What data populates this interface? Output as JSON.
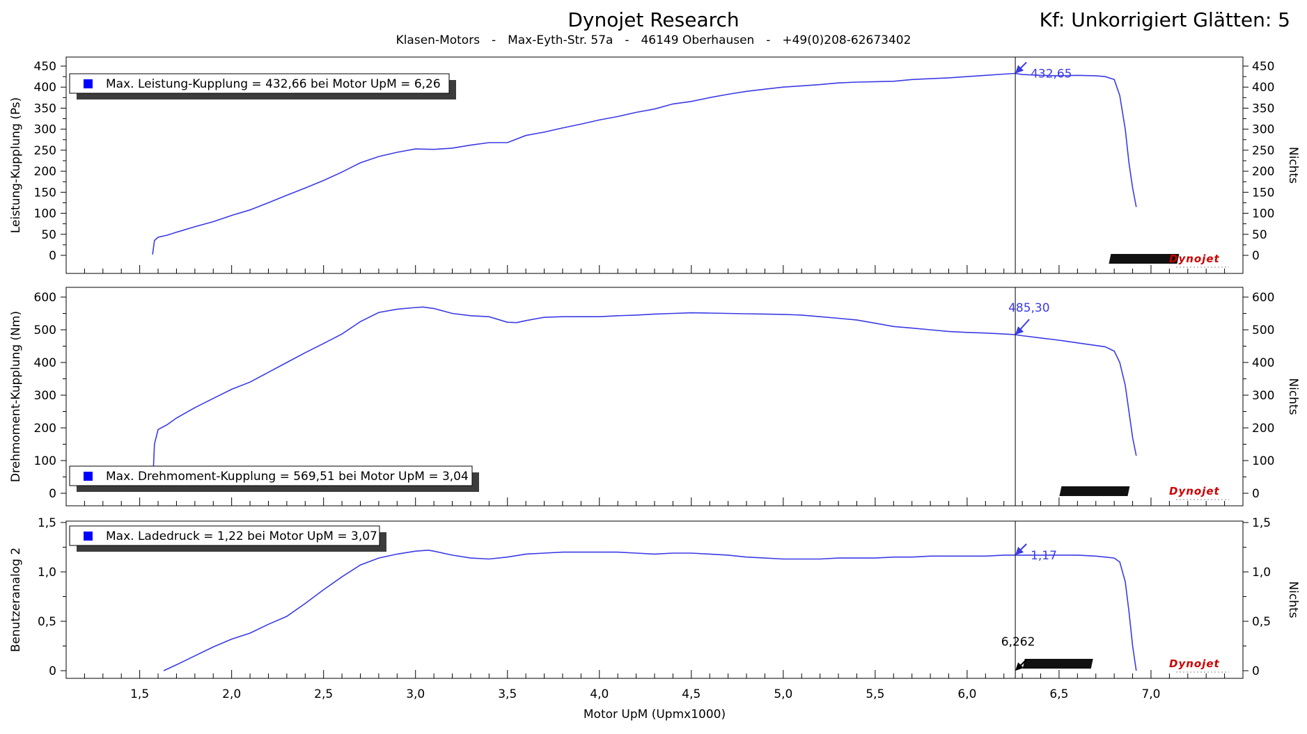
{
  "header": {
    "title": "Dynojet Research",
    "subtitle_parts": [
      "Klasen-Motors",
      "Max-Eyth-Str. 57a",
      "46149 Oberhausen",
      "+49(0)208-62673402"
    ],
    "separator": "-",
    "right_info": "Kf: Unkorrigiert Glätten: 5"
  },
  "colors": {
    "curve": "#3a3ae6",
    "cursor": "#000000",
    "legend_marker": "#0000ff",
    "logo_red": "#cc0000"
  },
  "cursor": {
    "x": 6.262,
    "label": "6,262"
  },
  "logo_text": "Dynojet",
  "chart_data": [
    {
      "type": "line",
      "ylabel": "Leistung-Kupplung (Ps)",
      "y2label": "Nichts",
      "ylim": [
        0,
        450
      ],
      "yticks": [
        0,
        50,
        100,
        150,
        200,
        250,
        300,
        350,
        400,
        450
      ],
      "ytick_labels": [
        "0",
        "50",
        "100",
        "150",
        "200",
        "250",
        "300",
        "350",
        "400",
        "450"
      ],
      "xlim": [
        1.1,
        7.5
      ],
      "grid": false,
      "legend": "Max. Leistung-Kupplung = 432,66 bei Motor UpM = 6,26",
      "cursor_value_label": "432,65",
      "series": [
        {
          "x": [
            1.57,
            1.58,
            1.6,
            1.65,
            1.7,
            1.8,
            1.9,
            2.0,
            2.1,
            2.2,
            2.3,
            2.4,
            2.5,
            2.6,
            2.7,
            2.8,
            2.9,
            3.0,
            3.1,
            3.2,
            3.3,
            3.4,
            3.5,
            3.6,
            3.7,
            3.8,
            3.9,
            4.0,
            4.1,
            4.2,
            4.3,
            4.4,
            4.5,
            4.6,
            4.7,
            4.8,
            4.9,
            5.0,
            5.1,
            5.2,
            5.3,
            5.4,
            5.5,
            5.6,
            5.7,
            5.8,
            5.9,
            6.0,
            6.1,
            6.2,
            6.26,
            6.3,
            6.4,
            6.5,
            6.6,
            6.7,
            6.75,
            6.8,
            6.83,
            6.86,
            6.88,
            6.9,
            6.92
          ],
          "y": [
            2,
            35,
            43,
            48,
            55,
            68,
            80,
            95,
            108,
            125,
            143,
            160,
            178,
            198,
            220,
            235,
            245,
            253,
            252,
            255,
            262,
            268,
            268,
            285,
            293,
            303,
            312,
            322,
            330,
            340,
            348,
            360,
            366,
            375,
            383,
            390,
            395,
            400,
            403,
            406,
            410,
            412,
            413,
            414,
            418,
            420,
            422,
            425,
            428,
            431,
            432.66,
            430,
            428,
            427,
            428,
            427,
            425,
            418,
            380,
            300,
            220,
            160,
            115
          ]
        }
      ]
    },
    {
      "type": "line",
      "ylabel": "Drehmoment-Kupplung (Nm)",
      "y2label": "Nichts",
      "ylim": [
        0,
        600
      ],
      "yticks": [
        0,
        100,
        200,
        300,
        400,
        500,
        600
      ],
      "ytick_labels": [
        "0",
        "100",
        "200",
        "300",
        "400",
        "500",
        "600"
      ],
      "xlim": [
        1.1,
        7.5
      ],
      "grid": false,
      "legend": "Max. Drehmoment-Kupplung = 569,51 bei Motor UpM = 3,04",
      "cursor_value_label": "485,30",
      "series": [
        {
          "x": [
            1.57,
            1.58,
            1.6,
            1.65,
            1.7,
            1.8,
            1.9,
            2.0,
            2.1,
            2.2,
            2.3,
            2.4,
            2.5,
            2.6,
            2.7,
            2.8,
            2.9,
            3.0,
            3.04,
            3.1,
            3.2,
            3.3,
            3.4,
            3.5,
            3.55,
            3.6,
            3.7,
            3.8,
            3.9,
            4.0,
            4.1,
            4.2,
            4.3,
            4.4,
            4.5,
            4.6,
            4.7,
            4.8,
            4.9,
            5.0,
            5.1,
            5.2,
            5.3,
            5.4,
            5.5,
            5.6,
            5.7,
            5.8,
            5.9,
            6.0,
            6.1,
            6.2,
            6.26,
            6.3,
            6.4,
            6.5,
            6.6,
            6.7,
            6.75,
            6.8,
            6.83,
            6.86,
            6.88,
            6.9,
            6.92
          ],
          "y": [
            15,
            150,
            195,
            210,
            230,
            262,
            290,
            318,
            340,
            370,
            400,
            430,
            458,
            487,
            525,
            553,
            563,
            568,
            569.51,
            565,
            550,
            543,
            540,
            523,
            522,
            528,
            538,
            540,
            540,
            540,
            543,
            545,
            548,
            550,
            552,
            551,
            550,
            549,
            548,
            547,
            545,
            540,
            535,
            530,
            520,
            510,
            505,
            500,
            495,
            492,
            490,
            487,
            485.3,
            482,
            475,
            468,
            460,
            452,
            448,
            435,
            400,
            330,
            250,
            170,
            115
          ]
        }
      ]
    },
    {
      "type": "line",
      "ylabel": "Benutzeranalog 2",
      "y2label": "Nichts",
      "ylim": [
        0,
        1.5
      ],
      "yticks": [
        0,
        0.5,
        1.0,
        1.5
      ],
      "ytick_labels": [
        "0",
        "0,5",
        "1,0",
        "1,5"
      ],
      "xlim": [
        1.1,
        7.5
      ],
      "xlabel": "Motor UpM (Upmx1000)",
      "xticks": [
        1.5,
        2.0,
        2.5,
        3.0,
        3.5,
        4.0,
        4.5,
        5.0,
        5.5,
        6.0,
        6.5,
        7.0
      ],
      "xtick_labels": [
        "1,5",
        "2,0",
        "2,5",
        "3,0",
        "3,5",
        "4,0",
        "4,5",
        "5,0",
        "5,5",
        "6,0",
        "6,5",
        "7,0"
      ],
      "grid": false,
      "legend": "Max. Ladedruck = 1,22 bei Motor UpM = 3,07",
      "cursor_value_label": "1,17",
      "series": [
        {
          "x": [
            1.63,
            1.7,
            1.8,
            1.9,
            2.0,
            2.1,
            2.2,
            2.3,
            2.4,
            2.5,
            2.6,
            2.7,
            2.8,
            2.9,
            3.0,
            3.07,
            3.1,
            3.2,
            3.3,
            3.4,
            3.5,
            3.6,
            3.7,
            3.8,
            3.9,
            4.0,
            4.1,
            4.2,
            4.3,
            4.4,
            4.5,
            4.6,
            4.7,
            4.8,
            4.9,
            5.0,
            5.1,
            5.2,
            5.3,
            5.4,
            5.5,
            5.6,
            5.7,
            5.8,
            5.9,
            6.0,
            6.1,
            6.2,
            6.26,
            6.3,
            6.4,
            6.5,
            6.6,
            6.7,
            6.75,
            6.8,
            6.83,
            6.86,
            6.88,
            6.9,
            6.92
          ],
          "y": [
            0.0,
            0.06,
            0.15,
            0.24,
            0.32,
            0.38,
            0.47,
            0.55,
            0.68,
            0.82,
            0.95,
            1.07,
            1.14,
            1.18,
            1.21,
            1.22,
            1.21,
            1.17,
            1.14,
            1.13,
            1.15,
            1.18,
            1.19,
            1.2,
            1.2,
            1.2,
            1.2,
            1.19,
            1.18,
            1.19,
            1.19,
            1.18,
            1.17,
            1.15,
            1.14,
            1.13,
            1.13,
            1.13,
            1.14,
            1.14,
            1.14,
            1.15,
            1.15,
            1.16,
            1.16,
            1.16,
            1.16,
            1.17,
            1.17,
            1.17,
            1.17,
            1.17,
            1.17,
            1.16,
            1.15,
            1.14,
            1.1,
            0.9,
            0.6,
            0.25,
            0.0
          ]
        }
      ]
    }
  ]
}
